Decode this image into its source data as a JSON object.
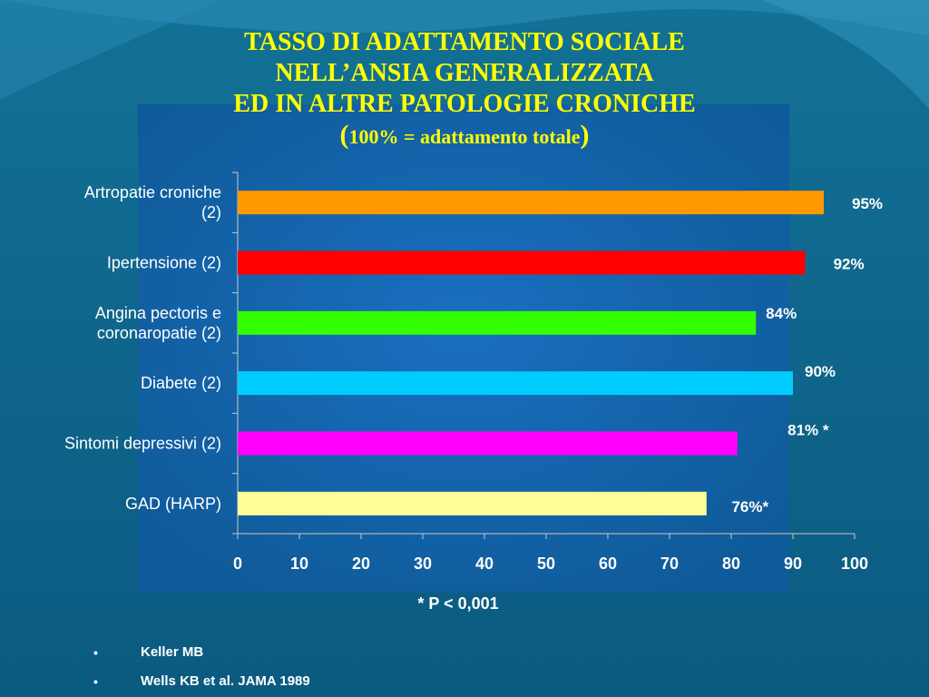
{
  "title": {
    "line1": "TASSO DI ADATTAMENTO SOCIALE",
    "line2": "NELL’ANSIA GENERALIZZATA",
    "line3": "ED IN ALTRE PATOLOGIE CRONICHE",
    "subtitle_open": "(",
    "subtitle_text": "100% = adattamento totale",
    "subtitle_close": ")"
  },
  "chart_data": {
    "type": "bar",
    "orientation": "horizontal",
    "categories": [
      "Artropatie croniche (2)",
      "Ipertensione (2)",
      "Angina pectoris e coronaropatie (2)",
      "Diabete (2)",
      "Sintomi depressivi (2)",
      "GAD (HARP)"
    ],
    "category_lines": [
      [
        "Artropatie croniche",
        "(2)"
      ],
      [
        "Ipertensione (2)"
      ],
      [
        "Angina pectoris e",
        "coronaropatie (2)"
      ],
      [
        "Diabete (2)"
      ],
      [
        "Sintomi depressivi (2)"
      ],
      [
        "GAD (HARP)"
      ]
    ],
    "values": [
      95,
      92,
      84,
      90,
      81,
      76
    ],
    "data_labels": [
      "95%",
      "92%",
      "84%",
      "90%",
      "81% *",
      "76%*"
    ],
    "colors": [
      "#ff9900",
      "#ff0000",
      "#33ff00",
      "#00ccff",
      "#ff00ff",
      "#ffff99"
    ],
    "xlim": [
      0,
      100
    ],
    "xticks": [
      0,
      10,
      20,
      30,
      40,
      50,
      60,
      70,
      80,
      90,
      100
    ],
    "grid": false
  },
  "footnote": "* P < 0,001",
  "references": [
    "Keller MB",
    "Wells KB et al. JAMA 1989"
  ],
  "colors": {
    "background": "#0e5f86",
    "plot_area": "#1565a8",
    "title": "#ffff00",
    "text": "#ffffff"
  }
}
